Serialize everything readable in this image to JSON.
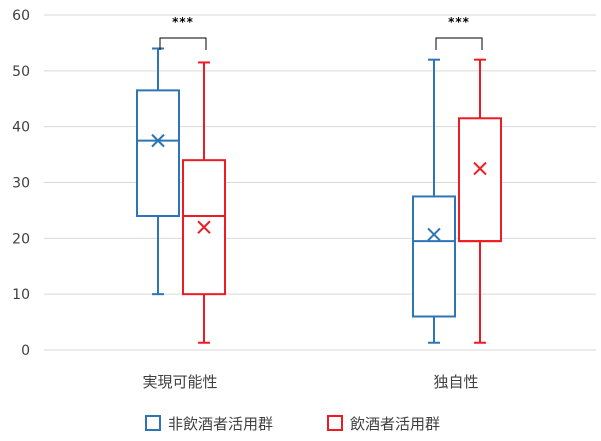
{
  "chart_data": {
    "type": "box",
    "title": "",
    "xlabel": "",
    "ylabel": "",
    "ylim": [
      0,
      60
    ],
    "yticks": [
      0,
      10,
      20,
      30,
      40,
      50,
      60
    ],
    "grid": true,
    "legend_position": "bottom",
    "categories": [
      "実現可能性",
      "独自性"
    ],
    "series": [
      {
        "name": "非飲酒者活用群",
        "color": "#2e75b6",
        "boxes": [
          {
            "min": 10,
            "q1": 24,
            "median": 37.5,
            "q3": 46.5,
            "max": 54,
            "mean": 37.5
          },
          {
            "min": 1.3,
            "q1": 6,
            "median": 19.5,
            "q3": 27.5,
            "max": 52,
            "mean": 20.7
          }
        ]
      },
      {
        "name": "飲酒者活用群",
        "color": "#ed1c24",
        "boxes": [
          {
            "min": 1.3,
            "q1": 10,
            "median": 24,
            "q3": 34,
            "max": 51.5,
            "mean": 22
          },
          {
            "min": 1.3,
            "q1": 19.5,
            "median": 19.5,
            "q3": 41.5,
            "max": 52,
            "mean": 32.5
          }
        ]
      }
    ],
    "significance": [
      {
        "category": "実現可能性",
        "label": "***"
      },
      {
        "category": "独自性",
        "label": "***"
      }
    ]
  }
}
